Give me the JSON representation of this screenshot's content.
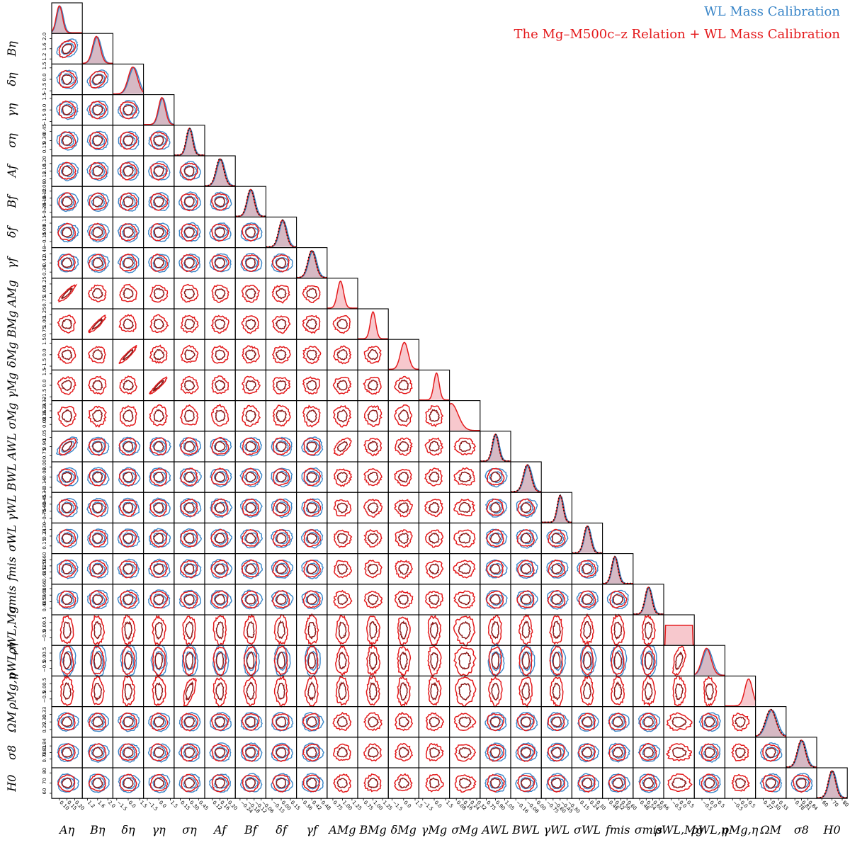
{
  "colors": {
    "wl": "#3a86c8",
    "joint": "#e41a1c",
    "joint_dark": "#8b1a1a",
    "overlap_fill": "#b57f94",
    "prior": "#111111"
  },
  "legend": {
    "wl": "WL Mass Calibration",
    "joint": "The Mg–M500c–z Relation + WL Mass Calibration"
  },
  "chart_data": {
    "type": "corner",
    "parameters": [
      {
        "label": "Aη",
        "ticks": [
          "0.10",
          "0.15",
          "0.20"
        ],
        "range": [
          0.05,
          0.25
        ],
        "mean": 0.1,
        "sigma": 0.02,
        "wl": true,
        "joint": true,
        "prior": false
      },
      {
        "label": "Bη",
        "ticks": [
          "1.2",
          "1.6",
          "2.0"
        ],
        "range": [
          1.0,
          2.2
        ],
        "mean": 1.55,
        "sigma": 0.15,
        "wl": true,
        "joint": true,
        "prior": false
      },
      {
        "label": "δη",
        "ticks": [
          "−1.5",
          "0.0",
          "1.5"
        ],
        "range": [
          -2.0,
          2.0
        ],
        "mean": 0.6,
        "sigma": 0.6,
        "wl": true,
        "joint": true,
        "prior": false
      },
      {
        "label": "γη",
        "ticks": [
          "−1.5",
          "0.0",
          "1.5"
        ],
        "range": [
          -2.0,
          2.0
        ],
        "mean": 0.4,
        "sigma": 0.45,
        "wl": true,
        "joint": true,
        "prior": false
      },
      {
        "label": "ση",
        "ticks": [
          "0.15",
          "0.30",
          "0.45"
        ],
        "range": [
          0.05,
          0.55
        ],
        "mean": 0.3,
        "sigma": 0.05,
        "wl": true,
        "joint": true,
        "prior": true
      },
      {
        "label": "Af",
        "ticks": [
          "0.12",
          "0.16",
          "0.20"
        ],
        "range": [
          0.08,
          0.24
        ],
        "mean": 0.16,
        "sigma": 0.02,
        "wl": true,
        "joint": true,
        "prior": true
      },
      {
        "label": "Bf",
        "ticks": [
          "−0.24",
          "−0.18",
          "−0.12",
          "−0.06"
        ],
        "range": [
          -0.28,
          -0.02
        ],
        "mean": -0.15,
        "sigma": 0.03,
        "wl": true,
        "joint": true,
        "prior": true
      },
      {
        "label": "δf",
        "ticks": [
          "−0.15",
          "0.00",
          "0.15"
        ],
        "range": [
          -0.25,
          0.25
        ],
        "mean": 0.02,
        "sigma": 0.06,
        "wl": true,
        "joint": true,
        "prior": true
      },
      {
        "label": "γf",
        "ticks": [
          "0.36",
          "0.42",
          "0.48"
        ],
        "range": [
          0.32,
          0.52
        ],
        "mean": 0.42,
        "sigma": 0.025,
        "wl": true,
        "joint": true,
        "prior": true
      },
      {
        "label": "AMg",
        "ticks": [
          "0.75",
          "1.00",
          "1.25"
        ],
        "range": [
          0.6,
          1.4
        ],
        "mean": 0.95,
        "sigma": 0.08,
        "wl": false,
        "joint": true,
        "prior": false
      },
      {
        "label": "BMg",
        "ticks": [
          "0.75",
          "1.00",
          "1.25"
        ],
        "range": [
          0.6,
          1.4
        ],
        "mean": 1.0,
        "sigma": 0.07,
        "wl": false,
        "joint": true,
        "prior": false
      },
      {
        "label": "δMg",
        "ticks": [
          "−1.5",
          "0.0",
          "1.5"
        ],
        "range": [
          -2.0,
          2.0
        ],
        "mean": 0.1,
        "sigma": 0.5,
        "wl": false,
        "joint": true,
        "prior": false
      },
      {
        "label": "γMg",
        "ticks": [
          "−1.5",
          "0.0",
          "1.5"
        ],
        "range": [
          -2.0,
          2.0
        ],
        "mean": 0.3,
        "sigma": 0.35,
        "wl": false,
        "joint": true,
        "prior": false
      },
      {
        "label": "σMg",
        "ticks": [
          "0.08",
          "0.16",
          "0.24",
          "0.32"
        ],
        "range": [
          0.0,
          0.36
        ],
        "mean": 0.02,
        "sigma": 0.08,
        "wl": false,
        "joint": true,
        "prior": false
      },
      {
        "label": "AWL",
        "ticks": [
          "0.75",
          "0.90",
          "1.05"
        ],
        "range": [
          0.65,
          1.15
        ],
        "mean": 0.9,
        "sigma": 0.05,
        "wl": true,
        "joint": true,
        "prior": true
      },
      {
        "label": "BWL",
        "ticks": [
          "−0.16",
          "−0.08",
          "0.00"
        ],
        "range": [
          -0.2,
          0.04
        ],
        "mean": -0.07,
        "sigma": 0.03,
        "wl": true,
        "joint": true,
        "prior": true
      },
      {
        "label": "γWL",
        "ticks": [
          "−0.75",
          "−0.60",
          "−0.45",
          "−0.30"
        ],
        "range": [
          -0.85,
          -0.2
        ],
        "mean": -0.45,
        "sigma": 0.06,
        "wl": true,
        "joint": true,
        "prior": true
      },
      {
        "label": "σWL",
        "ticks": [
          "0.15",
          "0.24",
          "0.30"
        ],
        "range": [
          0.08,
          0.36
        ],
        "mean": 0.22,
        "sigma": 0.03,
        "wl": true,
        "joint": true,
        "prior": true
      },
      {
        "label": "fmis",
        "ticks": [
          "0.48",
          "0.52",
          "0.56",
          "0.60"
        ],
        "range": [
          0.44,
          0.64
        ],
        "mean": 0.52,
        "sigma": 0.02,
        "wl": true,
        "joint": true,
        "prior": true
      },
      {
        "label": "σmis",
        "ticks": [
          "0.48",
          "0.54",
          "0.60",
          "0.66"
        ],
        "range": [
          0.42,
          0.7
        ],
        "mean": 0.56,
        "sigma": 0.03,
        "wl": true,
        "joint": true,
        "prior": true
      },
      {
        "label": "ρWL,Mg",
        "ticks": [
          "−0.5",
          "0.0",
          "0.5"
        ],
        "range": [
          -1.0,
          1.0
        ],
        "mean": 0.0,
        "sigma": 0.45,
        "wl": false,
        "joint": true,
        "prior": false,
        "flat": true
      },
      {
        "label": "ρWL,η",
        "ticks": [
          "−0.5",
          "0.0",
          "0.5"
        ],
        "range": [
          -1.0,
          1.0
        ],
        "mean": -0.2,
        "sigma": 0.3,
        "wl": true,
        "joint": true,
        "prior": false
      },
      {
        "label": "ρMg,η",
        "ticks": [
          "−0.5",
          "0.0",
          "0.5"
        ],
        "range": [
          -1.0,
          1.0
        ],
        "mean": 0.55,
        "sigma": 0.25,
        "wl": false,
        "joint": true,
        "prior": false
      },
      {
        "label": "ΩM",
        "ticks": [
          "0.27",
          "0.30",
          "0.33"
        ],
        "range": [
          0.24,
          0.36
        ],
        "mean": 0.3,
        "sigma": 0.02,
        "wl": true,
        "joint": true,
        "prior": true
      },
      {
        "label": "σ8",
        "ticks": [
          "0.78",
          "0.81",
          "0.84"
        ],
        "range": [
          0.74,
          0.88
        ],
        "mean": 0.81,
        "sigma": 0.018,
        "wl": true,
        "joint": true,
        "prior": true
      },
      {
        "label": "H0",
        "ticks": [
          "60",
          "70",
          "80"
        ],
        "range": [
          55,
          85
        ],
        "mean": 70,
        "sigma": 3.5,
        "wl": true,
        "joint": true,
        "prior": true
      }
    ],
    "strong_correlations": [
      {
        "i": 9,
        "j": 0,
        "rho": 0.9
      },
      {
        "i": 10,
        "j": 1,
        "rho": 0.92
      },
      {
        "i": 11,
        "j": 2,
        "rho": 0.93
      },
      {
        "i": 12,
        "j": 3,
        "rho": 0.94
      },
      {
        "i": 14,
        "j": 0,
        "rho": 0.6
      },
      {
        "i": 14,
        "j": 9,
        "rho": 0.55
      },
      {
        "i": 1,
        "j": 0,
        "rho": 0.35
      },
      {
        "i": 2,
        "j": 1,
        "rho": 0.3
      },
      {
        "i": 22,
        "j": 4,
        "rho": 0.6
      }
    ]
  }
}
